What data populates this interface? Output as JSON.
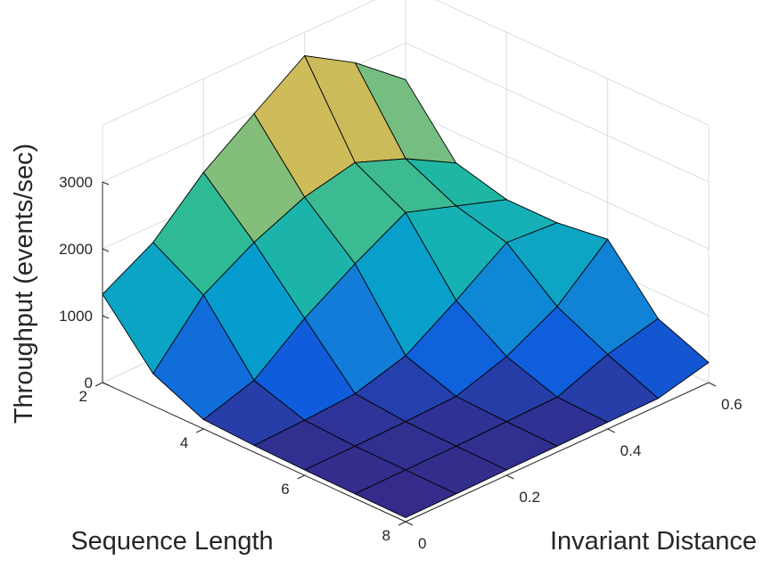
{
  "chart_data": {
    "type": "surface",
    "xlabel": "Invariant Distance",
    "ylabel": "Sequence Length",
    "zlabel": "Throughput (events/sec)",
    "x": [
      0,
      0.1,
      0.2,
      0.3,
      0.4,
      0.5,
      0.6
    ],
    "y": [
      2,
      3,
      4,
      5,
      6,
      7,
      8
    ],
    "z": [
      [
        1320,
        1750,
        2450,
        2980,
        3500,
        3050,
        2450
      ],
      [
        480,
        1310,
        1750,
        2080,
        2250,
        1960,
        1550
      ],
      [
        140,
        380,
        960,
        1430,
        1850,
        1600,
        1350
      ],
      [
        100,
        130,
        180,
        400,
        880,
        1400,
        1350
      ],
      [
        80,
        90,
        110,
        140,
        390,
        790,
        1450
      ],
      [
        70,
        80,
        90,
        110,
        130,
        420,
        610
      ],
      [
        60,
        70,
        80,
        90,
        100,
        110,
        300
      ]
    ],
    "xticks": [
      0,
      0.2,
      0.4,
      0.6
    ],
    "xtick_labels": [
      "0",
      "0.2",
      "0.4",
      "0.6"
    ],
    "yticks": [
      2,
      4,
      6,
      8
    ],
    "ytick_labels": [
      "2",
      "4",
      "6",
      "8"
    ],
    "zticks": [
      0,
      1000,
      2000,
      3000
    ],
    "ztick_labels": [
      "0",
      "1000",
      "2000",
      "3000"
    ],
    "xlim": [
      0,
      0.6
    ],
    "ylim": [
      2,
      8
    ],
    "zlim": [
      0,
      3000
    ],
    "colormap": "parula",
    "grid": true
  }
}
